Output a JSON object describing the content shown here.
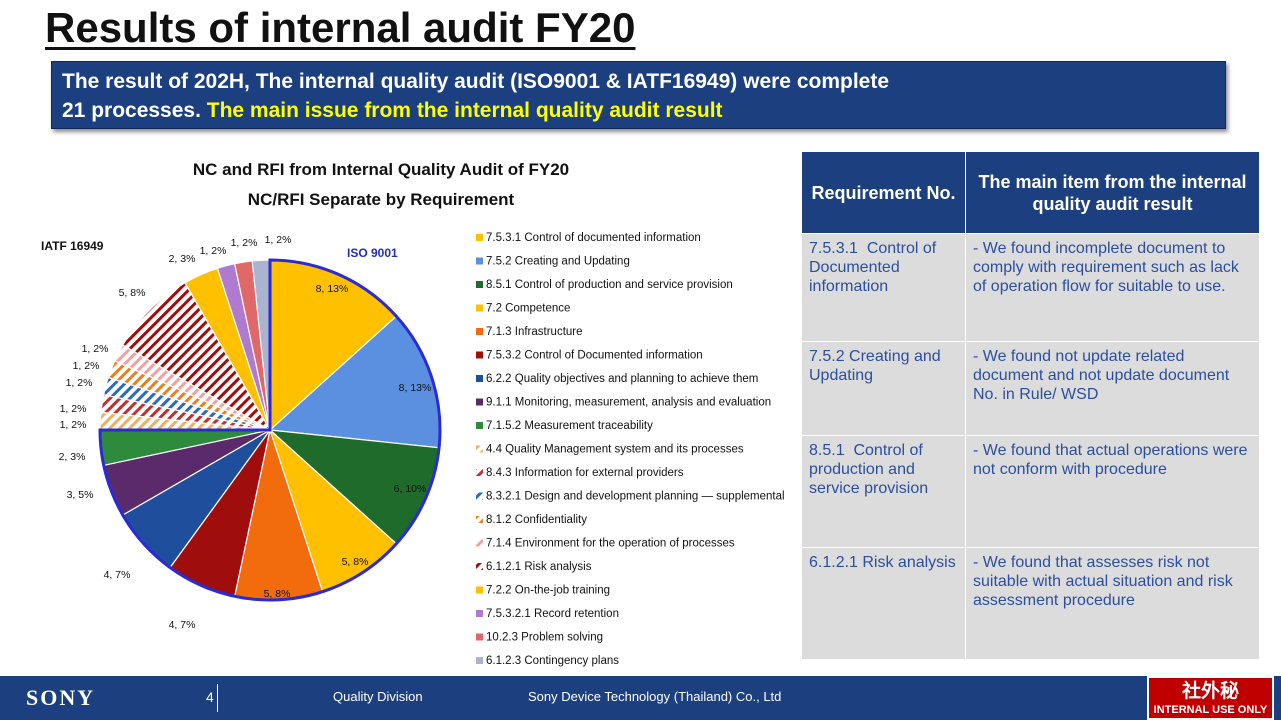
{
  "slide": {
    "title": "Results of internal audit FY20",
    "banner_line1": "The result of 202H, The internal quality audit (ISO9001 & IATF16949) were complete",
    "banner_line2_start": "21 processes. ",
    "banner_line2_highlight": "The main issue from the internal quality audit result"
  },
  "chart_data": {
    "type": "pie",
    "title": "NC and RFI from Internal Quality Audit of FY20",
    "subtitle": "NC/RFI Separate by Requirement",
    "group_labels": {
      "iso": "ISO 9001",
      "iatf": "IATF 16949"
    },
    "slices": [
      {
        "label": "7.5.3.1 Control of documented information",
        "value": 8,
        "data_label": "8, 13%",
        "color": "#ffc000",
        "pattern": "solid",
        "group": "iso"
      },
      {
        "label": "7.5.2 Creating and Updating",
        "value": 8,
        "data_label": "8, 13%",
        "color": "#5b8fe0",
        "pattern": "solid",
        "group": "iso"
      },
      {
        "label": "8.5.1 Control of production and service provision",
        "value": 6,
        "data_label": "6, 10%",
        "color": "#1e6b2b",
        "pattern": "solid",
        "group": "iso"
      },
      {
        "label": "7.2 Competence",
        "value": 5,
        "data_label": "5, 8%",
        "color": "#ffc000",
        "pattern": "solid",
        "group": "iso"
      },
      {
        "label": "7.1.3 Infrastructure",
        "value": 5,
        "data_label": "5, 8%",
        "color": "#f26c0d",
        "pattern": "solid",
        "group": "iso"
      },
      {
        "label": "7.5.3.2 Control of Documented information",
        "value": 4,
        "data_label": "4, 7%",
        "color": "#a00d0d",
        "pattern": "solid",
        "group": "iso"
      },
      {
        "label": "6.2.2 Quality objectives and planning to achieve them",
        "value": 4,
        "data_label": "4, 7%",
        "color": "#1f4e9c",
        "pattern": "solid",
        "group": "iso"
      },
      {
        "label": "9.1.1 Monitoring, measurement, analysis and evaluation",
        "value": 3,
        "data_label": "3, 5%",
        "color": "#5a2a6b",
        "pattern": "solid",
        "group": "iso"
      },
      {
        "label": "7.1.5.2 Measurement traceability",
        "value": 2,
        "data_label": "2, 3%",
        "color": "#2e8b3e",
        "pattern": "solid",
        "group": "iso"
      },
      {
        "label": "4.4 Quality Management system and its processes",
        "value": 1,
        "data_label": "1, 2%",
        "color": "#f0b060",
        "pattern": "hatch",
        "group": "iatf"
      },
      {
        "label": "8.4.3 Information for external providers",
        "value": 1,
        "data_label": "1, 2%",
        "color": "#c03030",
        "pattern": "hatch",
        "group": "iatf"
      },
      {
        "label": "8.3.2.1 Design and development planning — supplemental",
        "value": 1,
        "data_label": "1, 2%",
        "color": "#2a6bc0",
        "pattern": "hatch",
        "group": "iatf"
      },
      {
        "label": "8.1.2 Confidentiality",
        "value": 1,
        "data_label": "1, 2%",
        "color": "#e8801e",
        "pattern": "hatch",
        "group": "iatf"
      },
      {
        "label": "7.1.4 Environment for the operation of processes",
        "value": 1,
        "data_label": "1, 2%",
        "color": "#f3a0a0",
        "pattern": "hatch",
        "group": "iatf"
      },
      {
        "label": "6.1.2.1 Risk analysis",
        "value": 5,
        "data_label": "5, 8%",
        "color": "#a00d0d",
        "pattern": "hatch",
        "group": "iatf"
      },
      {
        "label": "7.2.2 On-the-job training",
        "value": 2,
        "data_label": "2, 3%",
        "color": "#ffc000",
        "pattern": "solid",
        "group": "iatf"
      },
      {
        "label": "7.5.3.2.1 Record retention",
        "value": 1,
        "data_label": "1, 2%",
        "color": "#b07ad0",
        "pattern": "solid",
        "group": "iatf"
      },
      {
        "label": "10.2.3 Problem solving",
        "value": 1,
        "data_label": "1, 2%",
        "color": "#e06868",
        "pattern": "solid",
        "group": "iatf"
      },
      {
        "label": "6.1.2.3 Contingency plans",
        "value": 1,
        "data_label": "1, 2%",
        "color": "#aab4d0",
        "pattern": "solid",
        "group": "iatf"
      }
    ],
    "legend_placement": "right"
  },
  "table": {
    "headers": [
      "Requirement No.",
      "The main item from the internal quality audit result"
    ],
    "rows": [
      {
        "req": "7.5.3.1  Control of Documented information",
        "result": "- We found incomplete document to comply with requirement such as lack of operation flow for suitable to use."
      },
      {
        "req": "7.5.2 Creating and Updating",
        "result": "- We found not update related document and not update document No. in Rule/ WSD"
      },
      {
        "req": "8.5.1  Control of production and service provision",
        "result": "- We found that actual operations were not conform with procedure"
      },
      {
        "req": "6.1.2.1 Risk analysis",
        "result": "- We found that assesses risk not suitable with actual situation and risk assessment procedure"
      }
    ]
  },
  "footer": {
    "logo": "SONY",
    "page_number": "4",
    "division": "Quality Division",
    "company": "Sony Device Technology (Thailand) Co., Ltd",
    "confidential_jp": "社外秘",
    "confidential_en": "INTERNAL USE ONLY"
  }
}
